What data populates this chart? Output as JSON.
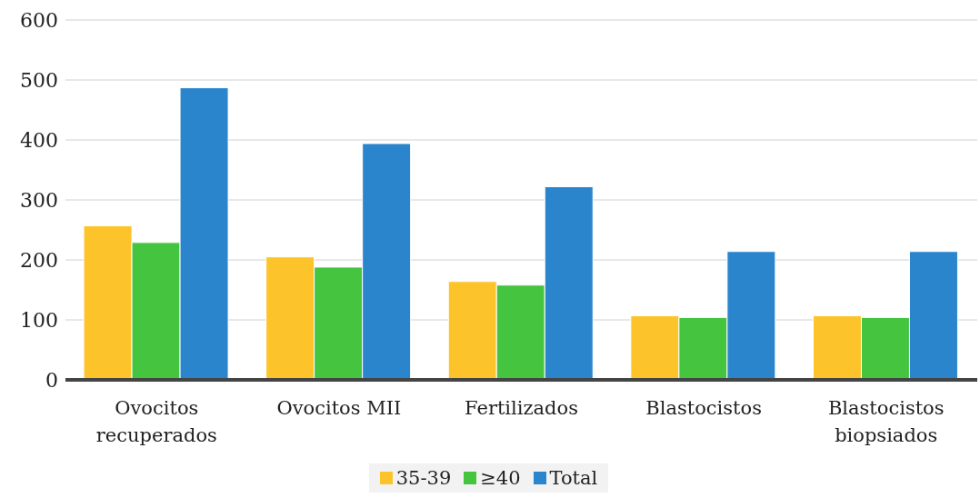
{
  "chart_data": {
    "type": "bar",
    "categories": [
      "Ovocitos recuperados",
      "Ovocitos MII",
      "Fertilizados",
      "Blastocistos",
      "Blastocistos biopsiados"
    ],
    "series": [
      {
        "name": "35-39",
        "color": "#fcc42a",
        "values": [
          257,
          205,
          164,
          107,
          107
        ]
      },
      {
        "name": "≥40",
        "color": "#44c43f",
        "values": [
          229,
          188,
          158,
          104,
          104
        ]
      },
      {
        "name": "Total",
        "color": "#2a85cc",
        "values": [
          487,
          394,
          322,
          214,
          214
        ]
      }
    ],
    "ylim": [
      0,
      600
    ],
    "yticks": [
      0,
      100,
      200,
      300,
      400,
      500,
      600
    ],
    "grid": "y",
    "legend": "bottom"
  }
}
